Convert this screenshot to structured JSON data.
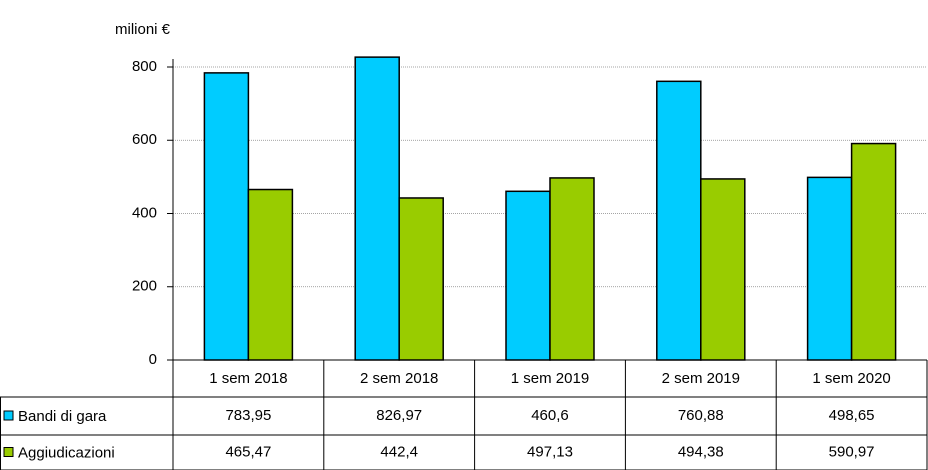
{
  "chart_data": {
    "type": "bar",
    "y_label": "milioni €",
    "categories": [
      "1 sem 2018",
      "2 sem 2018",
      "1 sem 2019",
      "2 sem 2019",
      "1 sem 2020"
    ],
    "series": [
      {
        "name": "Bandi di gara",
        "color": "#00ccff",
        "values": [
          783.95,
          826.97,
          460.6,
          760.88,
          498.65
        ],
        "value_labels": [
          "783,95",
          "826,97",
          "460,6",
          "760,88",
          "498,65"
        ]
      },
      {
        "name": "Aggiudicazioni",
        "color": "#99cc00",
        "values": [
          465.47,
          442.4,
          497.13,
          494.38,
          590.97
        ],
        "value_labels": [
          "465,47",
          "442,4",
          "497,13",
          "494,38",
          "590,97"
        ]
      }
    ],
    "ylim": [
      0,
      850
    ],
    "yticks": [
      0,
      200,
      400,
      600,
      800
    ],
    "grid": true
  }
}
